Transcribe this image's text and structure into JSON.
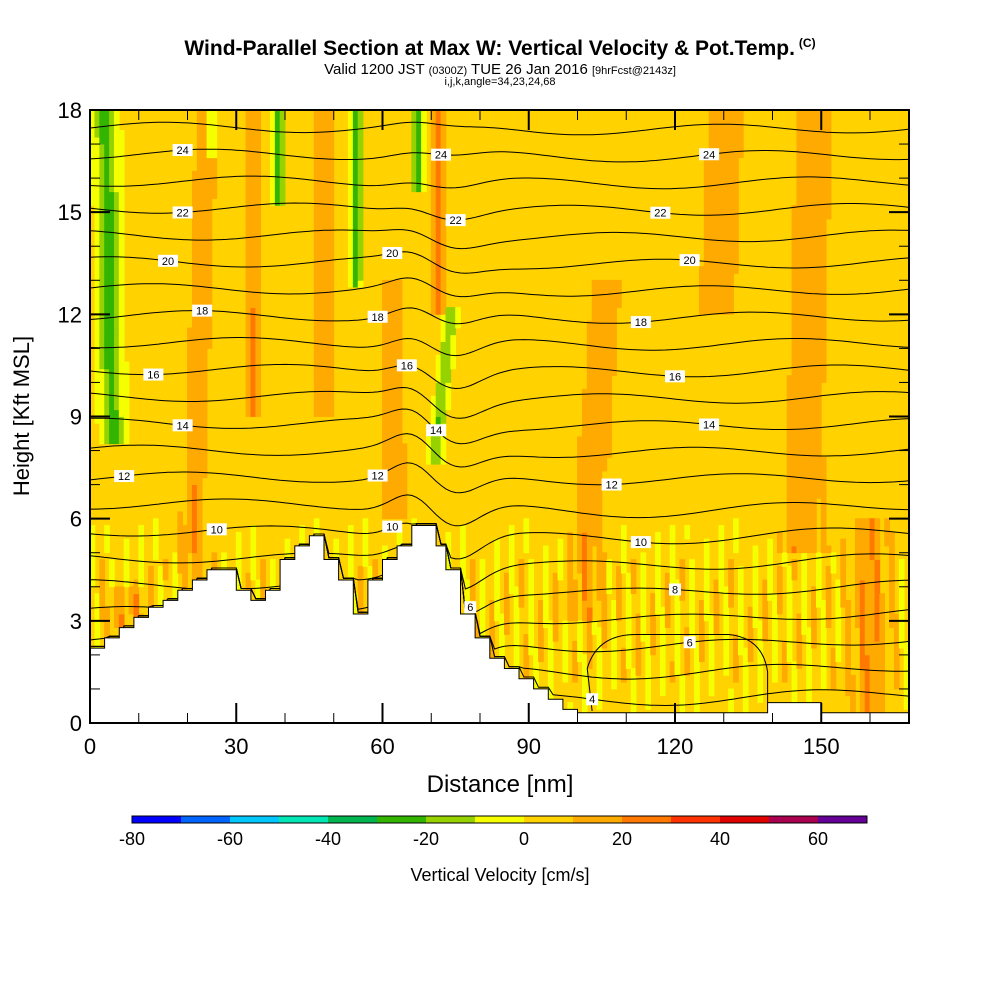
{
  "header": {
    "title": "Wind-Parallel Section at Max W: Vertical Velocity & Pot.Temp.",
    "title_unit": "(C)",
    "valid_prefix": "Valid 1200 JST",
    "valid_utc": "(0300Z)",
    "valid_date": "TUE 26 Jan 2016",
    "forecast": "[9hrFcst@2143z]",
    "indices": "i,j,k,angle=34,23,24,68"
  },
  "chart_data": {
    "type": "heatmap",
    "xlabel": "Distance [nm]",
    "ylabel": "Height [Kft MSL]",
    "xlim": [
      0,
      168
    ],
    "ylim": [
      0,
      18
    ],
    "x_ticks": [
      0,
      30,
      60,
      90,
      120,
      150
    ],
    "y_ticks": [
      0,
      3,
      6,
      9,
      12,
      15,
      18
    ],
    "colorbar": {
      "label": "Vertical Velocity [cm/s]",
      "tick_labels": [
        -80,
        -60,
        -40,
        -20,
        0,
        20,
        40,
        60
      ],
      "bounds": [
        -80,
        70
      ],
      "colors": [
        "#0000ff",
        "#0064ff",
        "#00c8ff",
        "#00e6b4",
        "#00b450",
        "#32b400",
        "#96d200",
        "#f5ff00",
        "#ffd200",
        "#ffaa00",
        "#ff7800",
        "#ff3200",
        "#e10000",
        "#aa0050",
        "#640096"
      ]
    },
    "theta_contours": {
      "units": "C",
      "labels": [
        {
          "value": 24,
          "x": [
            19,
            72,
            127
          ]
        },
        {
          "value": 22,
          "x": [
            19,
            75,
            117
          ]
        },
        {
          "value": 20,
          "x": [
            16,
            62,
            123
          ]
        },
        {
          "value": 18,
          "x": [
            23,
            59,
            113
          ]
        },
        {
          "value": 16,
          "x": [
            13,
            65,
            120
          ]
        },
        {
          "value": 14,
          "x": [
            19,
            71,
            127
          ]
        },
        {
          "value": 12,
          "x": [
            7,
            59,
            107
          ]
        },
        {
          "value": 10,
          "x": [
            26,
            62,
            113
          ]
        },
        {
          "value": 8,
          "x": [
            120
          ]
        },
        {
          "value": 6,
          "x": [
            78,
            123
          ]
        },
        {
          "value": 4,
          "x": [
            103
          ]
        }
      ]
    },
    "terrain_kft": [
      [
        0,
        2.2
      ],
      [
        3,
        2.2
      ],
      [
        3,
        2.5
      ],
      [
        6,
        2.5
      ],
      [
        6,
        2.8
      ],
      [
        9,
        2.8
      ],
      [
        9,
        3.1
      ],
      [
        12,
        3.1
      ],
      [
        12,
        3.4
      ],
      [
        15,
        3.4
      ],
      [
        15,
        3.6
      ],
      [
        18,
        3.6
      ],
      [
        18,
        3.9
      ],
      [
        21,
        3.9
      ],
      [
        21,
        4.2
      ],
      [
        24,
        4.2
      ],
      [
        24,
        4.5
      ],
      [
        30,
        4.5
      ],
      [
        30,
        3.9
      ],
      [
        33,
        3.9
      ],
      [
        33,
        3.6
      ],
      [
        36,
        3.6
      ],
      [
        36,
        3.9
      ],
      [
        39,
        3.9
      ],
      [
        39,
        4.8
      ],
      [
        42,
        4.8
      ],
      [
        42,
        5.2
      ],
      [
        45,
        5.2
      ],
      [
        45,
        5.5
      ],
      [
        48,
        5.5
      ],
      [
        48,
        4.8
      ],
      [
        51,
        4.8
      ],
      [
        51,
        4.2
      ],
      [
        54,
        4.2
      ],
      [
        54,
        3.2
      ],
      [
        57,
        3.2
      ],
      [
        57,
        4.2
      ],
      [
        60,
        4.2
      ],
      [
        60,
        4.8
      ],
      [
        63,
        4.8
      ],
      [
        63,
        5.2
      ],
      [
        66,
        5.2
      ],
      [
        66,
        5.8
      ],
      [
        71,
        5.8
      ],
      [
        71,
        5.2
      ],
      [
        73,
        5.2
      ],
      [
        73,
        4.5
      ],
      [
        76,
        4.5
      ],
      [
        76,
        3.2
      ],
      [
        79,
        3.2
      ],
      [
        79,
        2.5
      ],
      [
        82,
        2.5
      ],
      [
        82,
        1.9
      ],
      [
        85,
        1.9
      ],
      [
        85,
        1.6
      ],
      [
        88,
        1.6
      ],
      [
        88,
        1.3
      ],
      [
        91,
        1.3
      ],
      [
        91,
        1.0
      ],
      [
        94,
        1.0
      ],
      [
        94,
        0.7
      ],
      [
        97,
        0.7
      ],
      [
        97,
        0.4
      ],
      [
        100,
        0.4
      ],
      [
        100,
        0.3
      ],
      [
        139,
        0.3
      ],
      [
        139,
        0.6
      ],
      [
        150,
        0.6
      ],
      [
        150,
        0.3
      ],
      [
        168,
        0.3
      ]
    ],
    "shaded_regions": {
      "note": "Dominant background 0-10 cm/s; orange/gold updraft streaks 10-30 cm/s; green downdraft streaks -10 to -30 cm/s",
      "downdraft_x": [
        4,
        25,
        38,
        54,
        67,
        74
      ],
      "updraft_x": [
        22,
        34,
        48,
        62,
        72,
        100,
        125,
        145,
        160
      ]
    }
  }
}
